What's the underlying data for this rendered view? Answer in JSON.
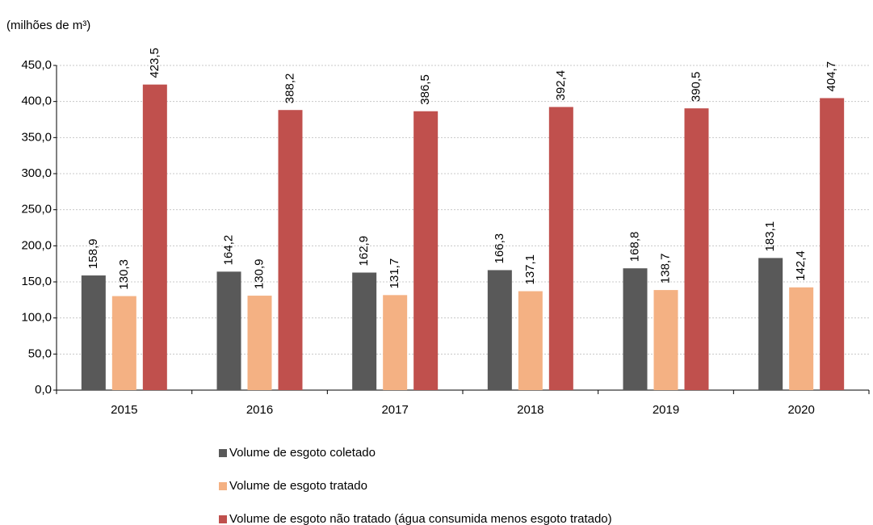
{
  "chart_data": {
    "type": "bar",
    "axis_label": "(milhões de m³)",
    "categories": [
      "2015",
      "2016",
      "2017",
      "2018",
      "2019",
      "2020"
    ],
    "series": [
      {
        "name": "Volume de esgoto coletado",
        "color": "#595959",
        "values": [
          158.9,
          164.2,
          162.9,
          166.3,
          168.8,
          183.1
        ],
        "value_labels": [
          "158,9",
          "164,2",
          "162,9",
          "166,3",
          "168,8",
          "183,1"
        ]
      },
      {
        "name": "Volume de esgoto tratado",
        "color": "#f4b183",
        "values": [
          130.3,
          130.9,
          131.7,
          137.1,
          138.7,
          142.4
        ],
        "value_labels": [
          "130,3",
          "130,9",
          "131,7",
          "137,1",
          "138,7",
          "142,4"
        ]
      },
      {
        "name": "Volume de esgoto não tratado (água consumida menos esgoto tratado)",
        "color": "#c0504d",
        "values": [
          423.5,
          388.2,
          386.5,
          392.4,
          390.5,
          404.7
        ],
        "value_labels": [
          "423,5",
          "388,2",
          "386,5",
          "392,4",
          "390,5",
          "404,7"
        ]
      }
    ],
    "ylim": [
      0,
      450
    ],
    "yticks": [
      {
        "value": 0,
        "label": "0,0"
      },
      {
        "value": 50,
        "label": "50,0"
      },
      {
        "value": 100,
        "label": "100,0"
      },
      {
        "value": 150,
        "label": "150,0"
      },
      {
        "value": 200,
        "label": "200,0"
      },
      {
        "value": 250,
        "label": "250,0"
      },
      {
        "value": 300,
        "label": "300,0"
      },
      {
        "value": 350,
        "label": "350,0"
      },
      {
        "value": 400,
        "label": "400,0"
      },
      {
        "value": 450,
        "label": "450,0"
      }
    ],
    "grid": true
  }
}
